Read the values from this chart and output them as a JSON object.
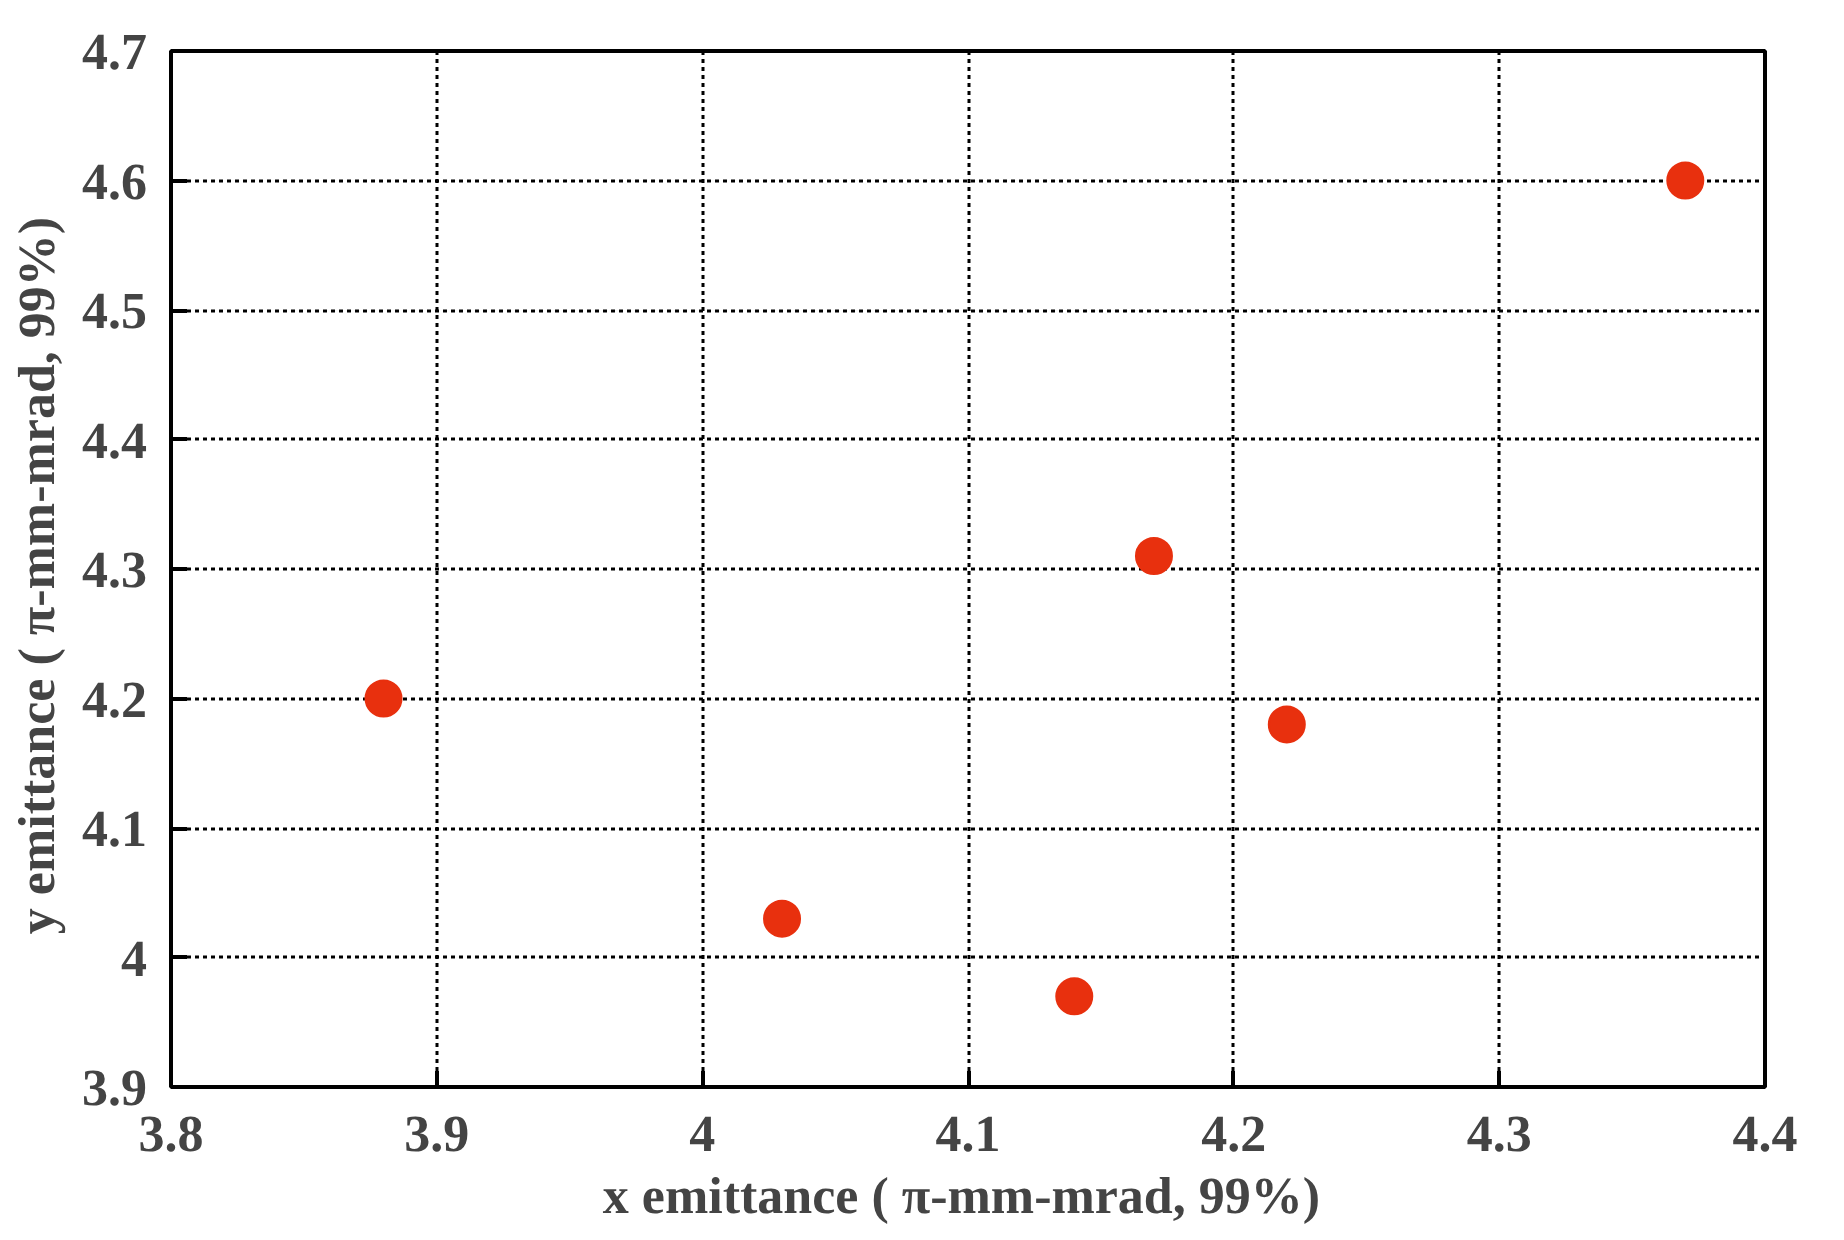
{
  "chart_data": {
    "type": "scatter",
    "xlabel": "x emittance (  π-mm-mrad, 99%)",
    "ylabel": "y emittance (  π-mm-mrad, 99%)",
    "x": [
      3.88,
      4.03,
      4.14,
      4.17,
      4.22,
      4.37
    ],
    "values": [
      4.2,
      4.03,
      3.97,
      4.31,
      4.18,
      4.6
    ],
    "color": "#e8300e",
    "marker": "circle",
    "xlim": [
      3.8,
      4.4
    ],
    "xticks": [
      3.8,
      3.9,
      4,
      4.1,
      4.2,
      4.3,
      4.4
    ],
    "ylim": [
      3.9,
      4.7
    ],
    "yticks": [
      3.9,
      4,
      4.1,
      4.2,
      4.3,
      4.4,
      4.5,
      4.6,
      4.7
    ],
    "grid": true
  }
}
